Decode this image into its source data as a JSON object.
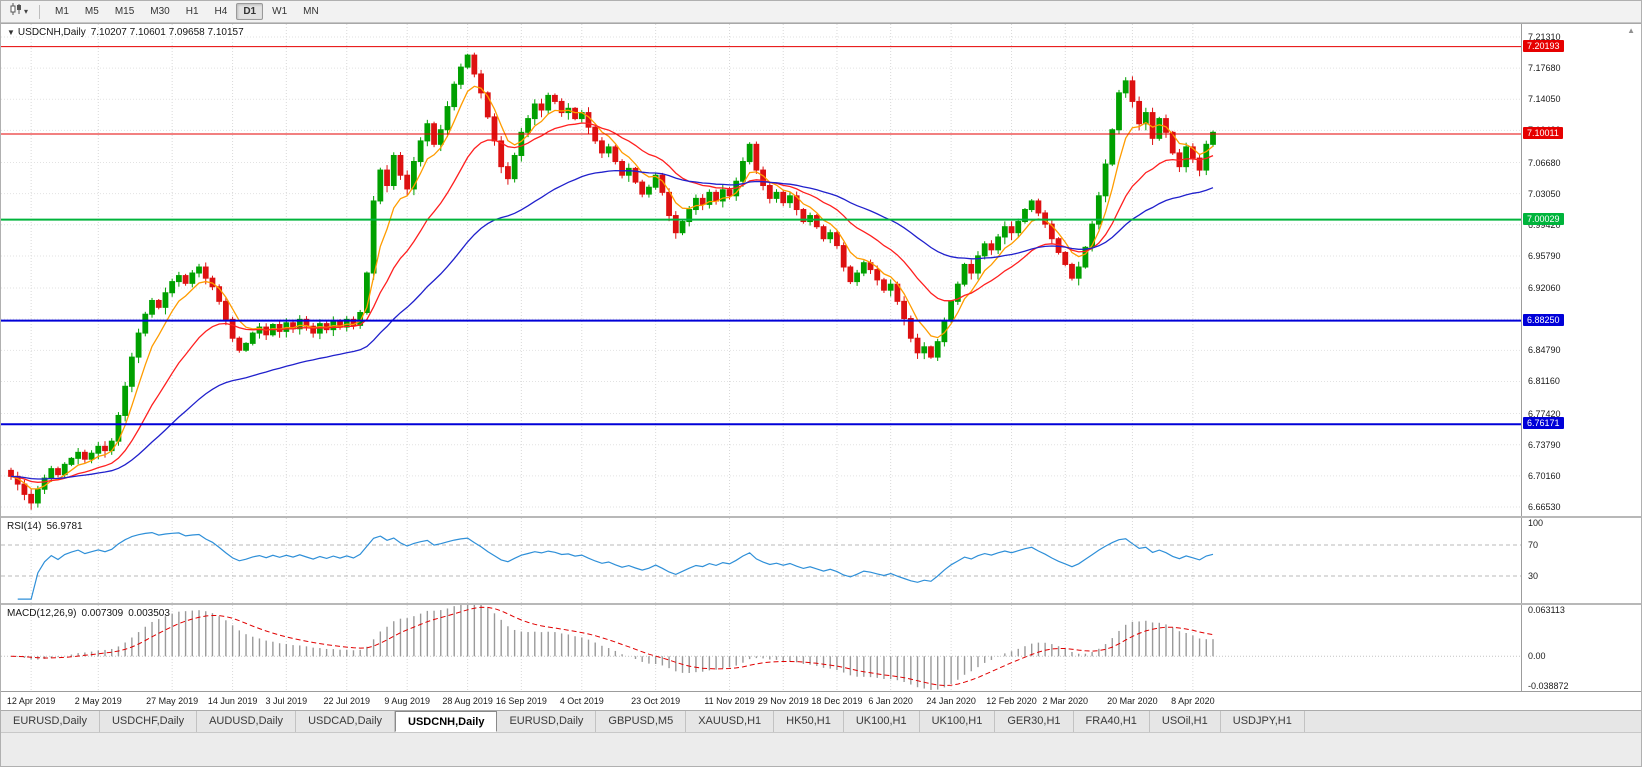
{
  "icons": {
    "collapse_arrow": "▼",
    "caret_down": "▾",
    "axis_scroll_up": "▲"
  },
  "toolbar": {
    "timeframes": [
      "M1",
      "M5",
      "M15",
      "M30",
      "H1",
      "H4",
      "D1",
      "W1",
      "MN"
    ],
    "active_timeframe": "D1"
  },
  "chart": {
    "title": "USDCNH,Daily",
    "ohlc": "7.10207 7.10601 7.09658 7.10157"
  },
  "price_axis": {
    "labels": [
      "7.21310",
      "7.17680",
      "7.14050",
      "7.10420",
      "7.06680",
      "7.03050",
      "6.99420",
      "6.95790",
      "6.92060",
      "6.88430",
      "6.84790",
      "6.81160",
      "6.77420",
      "6.73790",
      "6.70160",
      "6.66530"
    ]
  },
  "levels": [
    {
      "price": "7.20193",
      "color": "#e60000",
      "width": 1
    },
    {
      "price": "7.10011",
      "color": "#e60000",
      "width": 1
    },
    {
      "price": "7.00029",
      "color": "#00b43c",
      "width": 2
    },
    {
      "price": "6.88250",
      "color": "#0000d8",
      "width": 2
    },
    {
      "price": "6.76171",
      "color": "#0000d8",
      "width": 2
    }
  ],
  "rsi": {
    "label": "RSI(14)",
    "value": "56.9781",
    "axis_labels": [
      "100",
      "70",
      "30"
    ],
    "level_lines": [
      70,
      30
    ],
    "color": "#2e8fd8"
  },
  "macd": {
    "label": "MACD(12,26,9)",
    "value_main": "0.007309",
    "value_signal": "0.003503",
    "axis_labels": [
      "0.063113",
      "0.00",
      "-0.038872"
    ],
    "axis_top": 0.063113,
    "axis_bottom": -0.038872,
    "histogram_color": "#9a9a9a",
    "signal_color": "#e00000"
  },
  "date_axis": {
    "labels": [
      "12 Apr 2019",
      "2 May 2019",
      "27 May 2019",
      "14 Jun 2019",
      "3 Jul 2019",
      "22 Jul 2019",
      "9 Aug 2019",
      "28 Aug 2019",
      "16 Sep 2019",
      "4 Oct 2019",
      "23 Oct 2019",
      "11 Nov 2019",
      "29 Nov 2019",
      "18 Dec 2019",
      "6 Jan 2020",
      "24 Jan 2020",
      "12 Feb 2020",
      "2 Mar 2020",
      "20 Mar 2020",
      "8 Apr 2020"
    ]
  },
  "tabs": {
    "items": [
      "EURUSD,Daily",
      "USDCHF,Daily",
      "AUDUSD,Daily",
      "USDCAD,Daily",
      "USDCNH,Daily",
      "EURUSD,Daily",
      "GBPUSD,M5",
      "XAUUSD,H1",
      "HK50,H1",
      "UK100,H1",
      "UK100,H1",
      "GER30,H1",
      "FRA40,H1",
      "USOil,H1",
      "USDJPY,H1"
    ],
    "active_index": 4
  },
  "chart_data": {
    "type": "candlestick",
    "symbol": "USDCNH",
    "timeframe": "Daily",
    "title": "USDCNH,Daily",
    "y_range_top": 7.22825,
    "y_range_bottom": 6.6548,
    "first_open": 6.708,
    "up_color": "#00a000",
    "down_color": "#dd1111",
    "closes": [
      6.701,
      6.692,
      6.68,
      6.67,
      6.686,
      6.699,
      6.71,
      6.703,
      6.715,
      6.722,
      6.729,
      6.721,
      6.728,
      6.736,
      6.731,
      6.742,
      6.772,
      6.806,
      6.84,
      6.868,
      6.89,
      6.906,
      6.898,
      6.915,
      6.928,
      6.935,
      6.926,
      6.938,
      6.945,
      6.932,
      6.922,
      6.905,
      6.884,
      6.862,
      6.848,
      6.856,
      6.868,
      6.875,
      6.866,
      6.878,
      6.87,
      6.88,
      6.873,
      6.884,
      6.876,
      6.868,
      6.879,
      6.872,
      6.882,
      6.875,
      6.884,
      6.877,
      6.892,
      6.938,
      7.022,
      7.058,
      7.04,
      7.075,
      7.052,
      7.036,
      7.068,
      7.092,
      7.112,
      7.088,
      7.105,
      7.132,
      7.158,
      7.178,
      7.192,
      7.17,
      7.148,
      7.12,
      7.092,
      7.062,
      7.048,
      7.075,
      7.102,
      7.118,
      7.135,
      7.128,
      7.145,
      7.138,
      7.125,
      7.13,
      7.118,
      7.125,
      7.108,
      7.092,
      7.078,
      7.085,
      7.068,
      7.052,
      7.06,
      7.044,
      7.03,
      7.038,
      7.052,
      7.032,
      7.005,
      6.985,
      6.998,
      7.012,
      7.025,
      7.018,
      7.032,
      7.022,
      7.035,
      7.028,
      7.045,
      7.068,
      7.088,
      7.058,
      7.04,
      7.025,
      7.032,
      7.02,
      7.028,
      7.012,
      6.998,
      7.005,
      6.992,
      6.978,
      6.985,
      6.97,
      6.945,
      6.928,
      6.938,
      6.95,
      6.942,
      6.93,
      6.918,
      6.925,
      6.905,
      6.885,
      6.862,
      6.845,
      6.852,
      6.84,
      6.858,
      6.882,
      6.905,
      6.925,
      6.948,
      6.938,
      6.958,
      6.972,
      6.965,
      6.98,
      6.992,
      6.985,
      6.998,
      7.012,
      7.022,
      7.008,
      6.995,
      6.978,
      6.962,
      6.948,
      6.932,
      6.945,
      6.968,
      6.995,
      7.028,
      7.065,
      7.105,
      7.148,
      7.162,
      7.138,
      7.112,
      7.125,
      7.095,
      7.118,
      7.102,
      7.078,
      7.062,
      7.085,
      7.072,
      7.058,
      7.088,
      7.102
    ],
    "tick_indices": [
      3,
      13,
      24,
      33,
      41,
      50,
      59,
      68,
      76,
      85,
      96,
      107,
      115,
      123,
      131,
      140,
      149,
      157,
      167,
      176
    ],
    "mas": [
      {
        "name": "ema-fast",
        "period": 6,
        "color": "#ff9c00"
      },
      {
        "name": "ema-mid",
        "period": 18,
        "color": "#ff2020"
      },
      {
        "name": "ema-slow",
        "period": 45,
        "color": "#2020cc"
      }
    ],
    "indicators": {
      "rsi_period": 14,
      "macd_params": [
        12,
        26,
        9
      ]
    }
  }
}
